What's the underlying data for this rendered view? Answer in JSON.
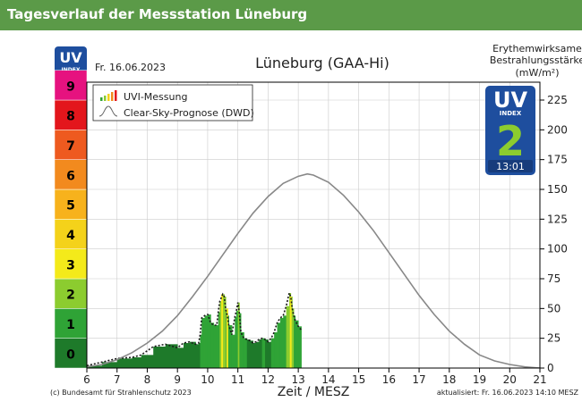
{
  "page": {
    "header_title": "Tagesverlauf der Messstation Lüneburg"
  },
  "chart_data": {
    "type": "area",
    "title": "Lüneburg (GAA-Hi)",
    "date": "Fr. 16.06.2023",
    "xlabel": "Zeit / MESZ",
    "ylabel_right": [
      "Erythemwirksame",
      "Bestrahlungsstärke",
      "(mW/m²)"
    ],
    "xlim": [
      6,
      21
    ],
    "ylim": [
      0,
      240
    ],
    "x_ticks": [
      6,
      7,
      8,
      9,
      10,
      11,
      12,
      13,
      14,
      15,
      16,
      17,
      18,
      19,
      20,
      21
    ],
    "y_ticks": [
      0,
      25,
      50,
      75,
      100,
      125,
      150,
      175,
      200,
      225
    ],
    "grid": true,
    "legend": {
      "position": "top-left",
      "entries": [
        "UVI-Messung",
        "Clear-Sky-Prognose (DWD)"
      ]
    },
    "uvi_scale": [
      {
        "level": 0,
        "color": "#1e7a2a"
      },
      {
        "level": 1,
        "color": "#2fa336"
      },
      {
        "level": 2,
        "color": "#8ccc2f"
      },
      {
        "level": 3,
        "color": "#f4ea1a"
      },
      {
        "level": 4,
        "color": "#f4d21a"
      },
      {
        "level": 5,
        "color": "#f7b21c"
      },
      {
        "level": 6,
        "color": "#f28a1e"
      },
      {
        "level": 7,
        "color": "#ee5a1f"
      },
      {
        "level": 8,
        "color": "#e3161c"
      },
      {
        "level": 9,
        "color": "#e6127f"
      }
    ],
    "series": [
      {
        "name": "UVI-Messung",
        "x": [
          6.0,
          6.5,
          7.0,
          7.5,
          7.8,
          8.2,
          8.6,
          9.0,
          9.2,
          9.4,
          9.6,
          9.7,
          9.75,
          9.8,
          9.9,
          10.0,
          10.1,
          10.2,
          10.3,
          10.35,
          10.4,
          10.5,
          10.55,
          10.6,
          10.65,
          10.7,
          10.8,
          10.9,
          10.95,
          11.0,
          11.05,
          11.1,
          11.2,
          11.3,
          11.4,
          11.5,
          11.6,
          11.7,
          11.8,
          11.9,
          12.0,
          12.1,
          12.2,
          12.3,
          12.4,
          12.5,
          12.6,
          12.7,
          12.75,
          12.8,
          12.85,
          12.9,
          13.0,
          13.1
        ],
        "values": [
          2,
          5,
          8,
          9,
          11,
          18,
          20,
          17,
          21,
          22,
          20,
          21,
          28,
          42,
          44,
          45,
          38,
          36,
          36,
          47,
          56,
          62,
          60,
          49,
          44,
          36,
          28,
          43,
          48,
          55,
          46,
          30,
          25,
          24,
          23,
          21,
          22,
          24,
          25,
          24,
          22,
          25,
          30,
          38,
          42,
          44,
          52,
          63,
          60,
          50,
          44,
          40,
          35,
          32
        ]
      },
      {
        "name": "Clear-Sky-Prognose (DWD)",
        "x": [
          6.0,
          6.5,
          7.0,
          7.5,
          8.0,
          8.5,
          9.0,
          9.5,
          10.0,
          10.5,
          11.0,
          11.5,
          12.0,
          12.5,
          13.0,
          13.3,
          13.5,
          14.0,
          14.5,
          15.0,
          15.5,
          16.0,
          16.5,
          17.0,
          17.5,
          18.0,
          18.5,
          19.0,
          19.5,
          20.0,
          20.5,
          21.0
        ],
        "values": [
          1,
          3,
          7,
          13,
          21,
          31,
          44,
          60,
          77,
          95,
          113,
          130,
          144,
          155,
          161,
          163,
          162,
          156,
          145,
          131,
          115,
          97,
          79,
          61,
          45,
          31,
          20,
          11,
          6,
          3,
          1,
          0
        ]
      }
    ],
    "uv_index_badge": {
      "logo_line1": "UV",
      "logo_line2": "INDEX",
      "value": "2",
      "time": "13:01"
    },
    "footer_left": "(c) Bundesamt für Strahlenschutz 2023",
    "footer_right": "aktualisiert: Fr. 16.06.2023  14:10  MESZ",
    "colors": {
      "curve": "#888888",
      "measure_dark": "#1e7a2a",
      "measure_mid": "#2fa336",
      "measure_light": "#8ccc2f",
      "highlight": "#f4ea1a",
      "badge": "#1e4e9e",
      "badge_value": "#8ccc2f"
    }
  }
}
